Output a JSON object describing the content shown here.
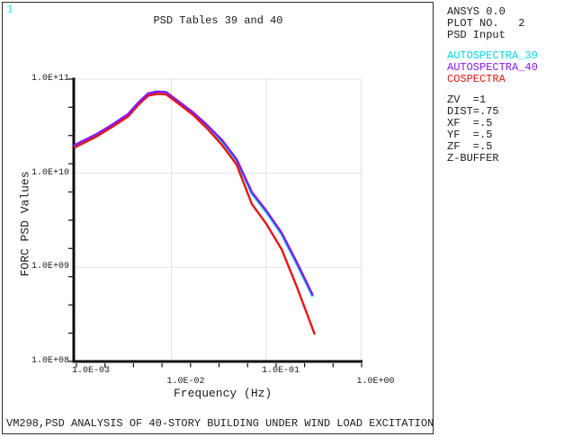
{
  "window": {
    "plot_number_badge": "1",
    "badge_color": "#45e8f0",
    "caption": "VM298,PSD ANALYSIS OF 40-STORY BUILDING UNDER WIND LOAD EXCITATION"
  },
  "side_panel": {
    "info_lines": [
      "ANSYS 0.0",
      "PLOT NO.   2",
      "PSD Input"
    ],
    "legend": [
      {
        "label": "AUTOSPECTRA_39",
        "color": "#00dce8"
      },
      {
        "label": "AUTOSPECTRA_40",
        "color": "#8718f2"
      },
      {
        "label": "COSPECTRA",
        "color": "#ee1212"
      }
    ],
    "view_settings": [
      "ZV  =1",
      "DIST=.75",
      "XF  =.5",
      "YF  =.5",
      "ZF  =.5",
      "Z-BUFFER"
    ]
  },
  "chart_data": {
    "type": "line",
    "title": "PSD Tables 39 and 40",
    "xlabel": "Frequency (Hz)",
    "ylabel": "FORC PSD Values",
    "x_scale": "log",
    "y_scale": "log",
    "xlim": [
      0.00094,
      1.0
    ],
    "ylim": [
      100000000.0,
      100000000000.0
    ],
    "grid": true,
    "grid_color": "#e2e2e2",
    "axis_color": "#0d0d0d",
    "x_ticks": [
      {
        "value": 0.001,
        "label": "1.0E-03"
      },
      {
        "value": 0.01,
        "label": "1.0E-02"
      },
      {
        "value": 0.1,
        "label": "1.0E-01"
      },
      {
        "value": 1.0,
        "label": "1.0E+00"
      }
    ],
    "y_ticks": [
      {
        "value": 100000000.0,
        "label": "1.0E+08"
      },
      {
        "value": 1000000000.0,
        "label": "1.0E+09"
      },
      {
        "value": 10000000000.0,
        "label": "1.0E+10"
      },
      {
        "value": 100000000000.0,
        "label": "1.0E+11"
      }
    ],
    "legend_position": "outside-right",
    "series": [
      {
        "name": "AUTOSPECTRA_39",
        "color": "#00dce8",
        "x": [
          0.00094,
          0.00165,
          0.0025,
          0.0035,
          0.0045,
          0.0057,
          0.007,
          0.0088,
          0.0123,
          0.017,
          0.0237,
          0.034,
          0.0486,
          0.0706,
          0.1,
          0.145,
          0.21,
          0.31
        ],
        "y": [
          19200000000.0,
          25500000000.0,
          33000000000.0,
          41400000000.0,
          55000000000.0,
          68700000000.0,
          71800000000.0,
          71000000000.0,
          55100000000.0,
          43000000000.0,
          31800000000.0,
          22000000000.0,
          13800000000.0,
          6110000000.0,
          3900000000.0,
          2270000000.0,
          1100000000.0,
          490000000.0
        ]
      },
      {
        "name": "AUTOSPECTRA_40",
        "color": "#8718f2",
        "x": [
          0.00094,
          0.00165,
          0.0025,
          0.0035,
          0.0045,
          0.0057,
          0.007,
          0.0088,
          0.0123,
          0.017,
          0.0237,
          0.034,
          0.0486,
          0.0706,
          0.1,
          0.145,
          0.21,
          0.31
        ],
        "y": [
          19200000000.0,
          25500000000.0,
          33000000000.0,
          41400000000.0,
          55000000000.0,
          68700000000.0,
          71800000000.0,
          71000000000.0,
          55100000000.0,
          43000000000.0,
          31800000000.0,
          22000000000.0,
          13800000000.0,
          6110000000.0,
          3900000000.0,
          2270000000.0,
          1100000000.0,
          490000000.0
        ]
      },
      {
        "name": "COSPECTRA",
        "color": "#ee1212",
        "x": [
          0.00094,
          0.00165,
          0.0025,
          0.0035,
          0.0045,
          0.0057,
          0.007,
          0.0088,
          0.0123,
          0.017,
          0.0237,
          0.034,
          0.0486,
          0.0706,
          0.1,
          0.145,
          0.21,
          0.324
        ],
        "y": [
          18600000000.0,
          24700000000.0,
          32000000000.0,
          40100000000.0,
          53300000000.0,
          66600000000.0,
          69600000000.0,
          68800000000.0,
          53400000000.0,
          41500000000.0,
          30000000000.0,
          20000000000.0,
          12400000000.0,
          4700000000.0,
          2900000000.0,
          1560000000.0,
          620000000.0,
          194000000.0
        ]
      }
    ]
  }
}
